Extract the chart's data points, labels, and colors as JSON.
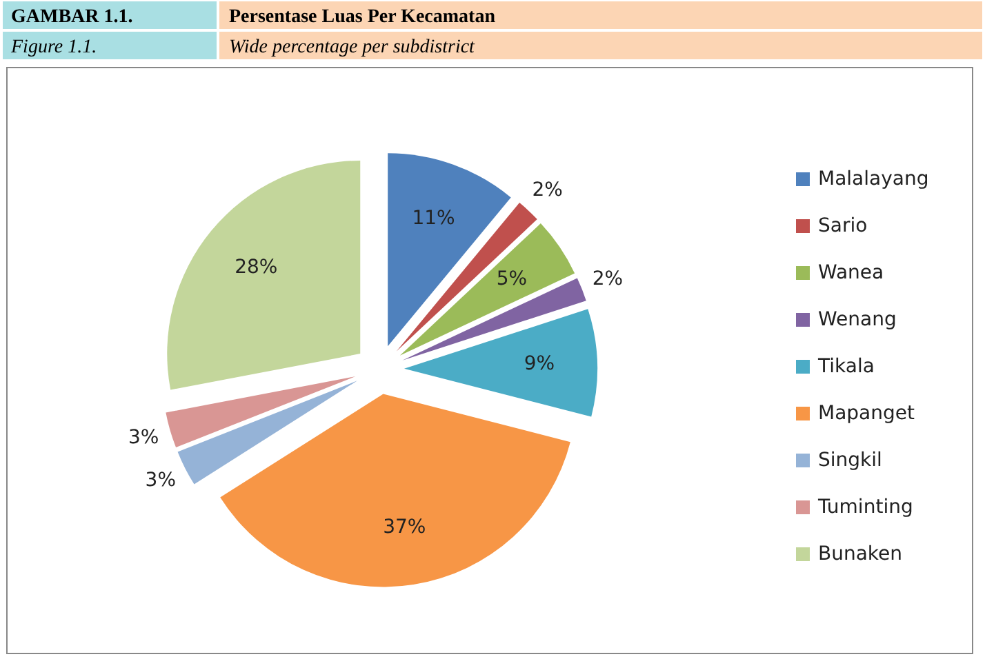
{
  "chart_data": {
    "type": "pie",
    "title": "Persentase Luas Per Kecamatan",
    "subtitle": "Wide percentage per subdistrict",
    "annotations": [
      "GAMBAR 1.1.",
      "Figure 1.1."
    ],
    "categories": [
      "Malalayang",
      "Sario",
      "Wanea",
      "Wenang",
      "Tikala",
      "Mapanget",
      "Singkil",
      "Tuminting",
      "Bunaken"
    ],
    "values": [
      11,
      2,
      5,
      2,
      9,
      37,
      3,
      3,
      28
    ],
    "colors": [
      "#4f81bd",
      "#c0504d",
      "#9bbb59",
      "#8064a2",
      "#4bacc6",
      "#f79646",
      "#95b3d7",
      "#d99694",
      "#c3d69b"
    ],
    "value_labels": [
      "11%",
      "2%",
      "5%",
      "2%",
      "9%",
      "37%",
      "3%",
      "3%",
      "28%"
    ],
    "legend": "right"
  }
}
